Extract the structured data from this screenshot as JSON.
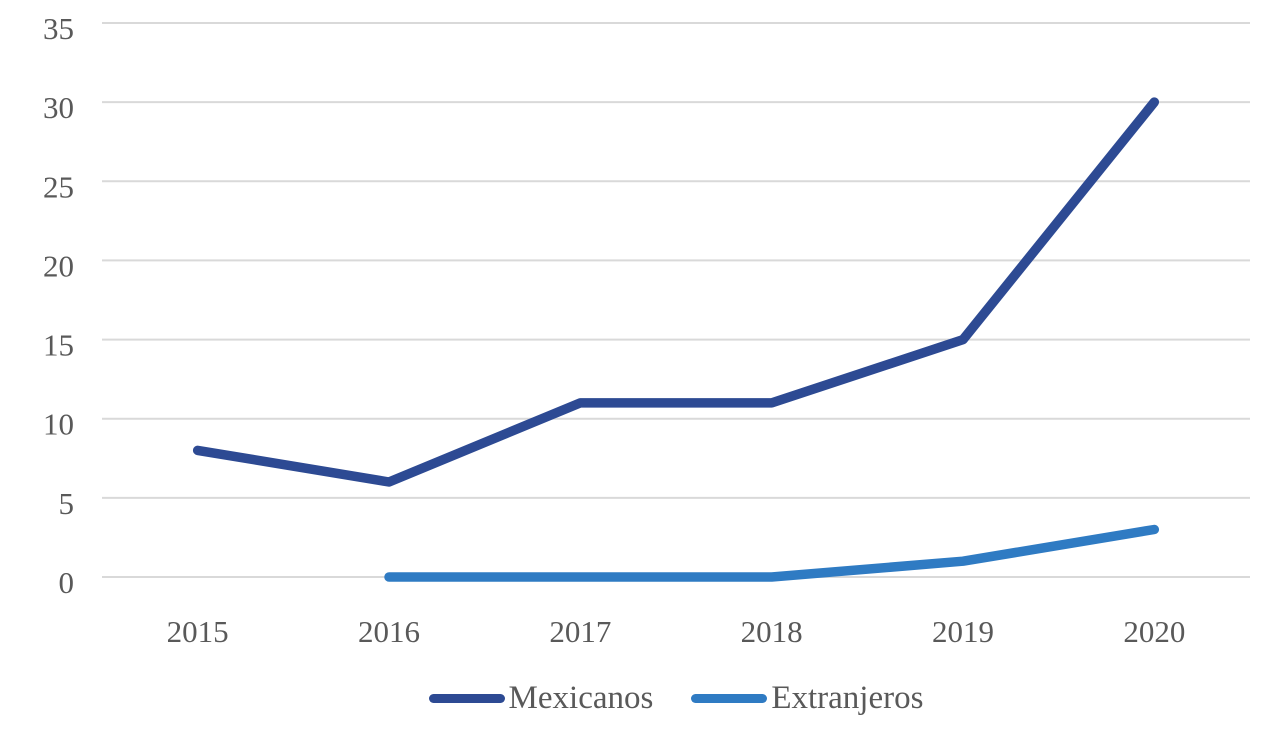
{
  "figure": {
    "background": "#ffffff"
  },
  "chart_data": {
    "type": "line",
    "categories": [
      "2015",
      "2016",
      "2017",
      "2018",
      "2019",
      "2020"
    ],
    "series": [
      {
        "name": "Mexicanos",
        "color": "#2d4a93",
        "values": [
          8,
          6,
          11,
          11,
          15,
          30
        ]
      },
      {
        "name": "Extranjeros",
        "color": "#2f7bc3",
        "values": [
          null,
          0,
          0,
          0,
          1,
          3
        ]
      }
    ],
    "title": "",
    "xlabel": "",
    "ylabel": "",
    "ylim": [
      0,
      35
    ],
    "yticks": [
      0,
      5,
      10,
      15,
      20,
      25,
      30,
      35
    ],
    "grid": true,
    "grid_color": "#d9d9d9",
    "tick_label_color": "#595959",
    "line_width": 9.5,
    "legend_position": "bottom"
  }
}
